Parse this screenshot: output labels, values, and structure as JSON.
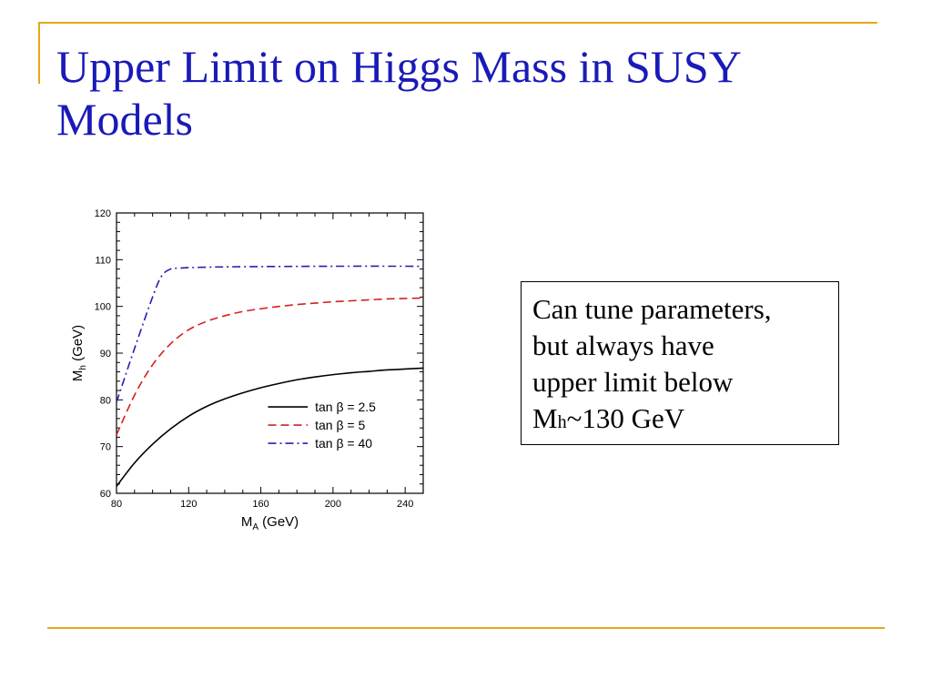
{
  "slide": {
    "title": "Upper Limit on Higgs Mass in SUSY Models",
    "accent_color": "#E6A817",
    "title_color": "#1A1AB8"
  },
  "note": {
    "lines": [
      "Can tune parameters,",
      "but always have",
      "upper limit below"
    ],
    "last_line_prefix": "M",
    "last_line_subscript": "h",
    "last_line_suffix": "~130 GeV"
  },
  "chart_data": {
    "type": "line",
    "title": "",
    "xlabel": "M",
    "xlabel_sub": "A",
    "xlabel_unit": " (GeV)",
    "ylabel": "M",
    "ylabel_sub": "h",
    "ylabel_unit": " (GeV)",
    "xlim": [
      80,
      250
    ],
    "ylim": [
      60,
      120
    ],
    "xticks": [
      80,
      120,
      160,
      200,
      240
    ],
    "yticks": [
      60,
      70,
      80,
      90,
      100,
      110,
      120
    ],
    "grid": false,
    "legend_position": "lower-right",
    "series": [
      {
        "name": "tan β = 2.5",
        "color": "#000000",
        "dash": "solid",
        "x": [
          80,
          90,
          100,
          110,
          120,
          130,
          140,
          150,
          160,
          170,
          180,
          190,
          200,
          210,
          220,
          230,
          240,
          250
        ],
        "y": [
          61.5,
          66.5,
          70.5,
          73.8,
          76.5,
          78.6,
          80.2,
          81.5,
          82.6,
          83.5,
          84.3,
          84.9,
          85.4,
          85.8,
          86.1,
          86.4,
          86.6,
          86.8
        ]
      },
      {
        "name": "tan β = 5",
        "color": "#D42020",
        "dash": "dashed",
        "x": [
          80,
          90,
          100,
          110,
          120,
          130,
          140,
          150,
          160,
          170,
          180,
          190,
          200,
          210,
          220,
          230,
          240,
          250
        ],
        "y": [
          72.5,
          81.0,
          87.5,
          92.0,
          95.0,
          96.8,
          98.0,
          98.9,
          99.5,
          100.0,
          100.4,
          100.7,
          101.0,
          101.2,
          101.4,
          101.6,
          101.7,
          101.8
        ]
      },
      {
        "name": "tan β = 40",
        "color": "#2020B0",
        "dash": "dashdot",
        "x": [
          80,
          90,
          100,
          105,
          110,
          115,
          120,
          130,
          150,
          200,
          250
        ],
        "y": [
          79.5,
          91.0,
          102.0,
          106.5,
          108.0,
          108.2,
          108.3,
          108.4,
          108.5,
          108.6,
          108.6
        ]
      }
    ]
  }
}
